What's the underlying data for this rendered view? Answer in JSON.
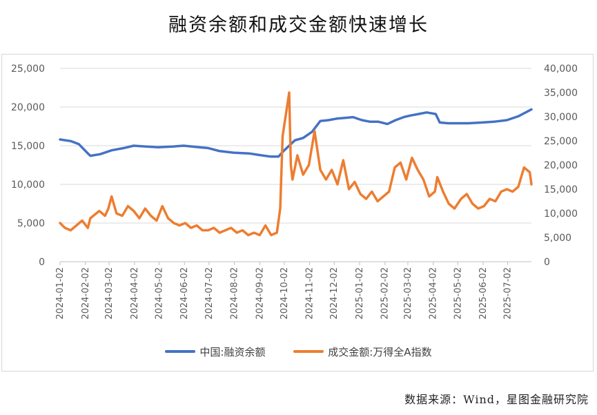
{
  "title": "融资余额和成交金额快速增长",
  "source": "数据来源：Wind，星图金融研究院",
  "chart_data": {
    "type": "line",
    "left_axis": {
      "min": 0,
      "max": 25000,
      "ticks": [
        "0",
        "5,000",
        "10,000",
        "15,000",
        "20,000",
        "25,000"
      ]
    },
    "right_axis": {
      "min": 0,
      "max": 40000,
      "ticks": [
        "0",
        "5,000",
        "10,000",
        "15,000",
        "20,000",
        "25,000",
        "30,000",
        "35,000",
        "40,000"
      ]
    },
    "x_ticks": [
      "2024-01-02",
      "2024-02-02",
      "2024-03-02",
      "2024-04-02",
      "2024-05-02",
      "2024-06-02",
      "2024-07-02",
      "2024-08-02",
      "2024-09-02",
      "2024-10-02",
      "2024-11-02",
      "2024-12-02",
      "2025-01-02",
      "2025-02-02",
      "2025-03-02",
      "2025-04-02",
      "2025-05-02",
      "2025-06-02",
      "2025-07-02"
    ],
    "x_range": [
      "2024-01-02",
      "2025-07-31"
    ],
    "series": [
      {
        "name": "中国:融资余额",
        "axis": "left",
        "color": "#4472C4",
        "points": [
          [
            "2024-01-02",
            15800
          ],
          [
            "2024-01-15",
            15600
          ],
          [
            "2024-01-25",
            15200
          ],
          [
            "2024-02-05",
            14000
          ],
          [
            "2024-02-08",
            13700
          ],
          [
            "2024-02-20",
            13900
          ],
          [
            "2024-03-05",
            14400
          ],
          [
            "2024-03-20",
            14700
          ],
          [
            "2024-04-01",
            15000
          ],
          [
            "2024-04-15",
            14900
          ],
          [
            "2024-05-01",
            14800
          ],
          [
            "2024-05-20",
            14900
          ],
          [
            "2024-06-01",
            15000
          ],
          [
            "2024-06-20",
            14800
          ],
          [
            "2024-07-01",
            14700
          ],
          [
            "2024-07-15",
            14300
          ],
          [
            "2024-08-01",
            14100
          ],
          [
            "2024-08-20",
            14000
          ],
          [
            "2024-09-01",
            13800
          ],
          [
            "2024-09-15",
            13600
          ],
          [
            "2024-09-25",
            13600
          ],
          [
            "2024-10-01",
            14300
          ],
          [
            "2024-10-08",
            15000
          ],
          [
            "2024-10-15",
            15700
          ],
          [
            "2024-10-25",
            16000
          ],
          [
            "2024-11-05",
            16800
          ],
          [
            "2024-11-15",
            18200
          ],
          [
            "2024-11-25",
            18300
          ],
          [
            "2024-12-05",
            18500
          ],
          [
            "2024-12-15",
            18600
          ],
          [
            "2024-12-25",
            18700
          ],
          [
            "2025-01-05",
            18300
          ],
          [
            "2025-01-15",
            18100
          ],
          [
            "2025-01-25",
            18100
          ],
          [
            "2025-02-05",
            17800
          ],
          [
            "2025-02-15",
            18300
          ],
          [
            "2025-02-25",
            18700
          ],
          [
            "2025-03-05",
            18900
          ],
          [
            "2025-03-15",
            19100
          ],
          [
            "2025-03-25",
            19300
          ],
          [
            "2025-04-05",
            19100
          ],
          [
            "2025-04-10",
            18000
          ],
          [
            "2025-04-20",
            17900
          ],
          [
            "2025-05-01",
            17900
          ],
          [
            "2025-05-15",
            17900
          ],
          [
            "2025-06-01",
            18000
          ],
          [
            "2025-06-15",
            18100
          ],
          [
            "2025-07-01",
            18300
          ],
          [
            "2025-07-15",
            18800
          ],
          [
            "2025-07-31",
            19700
          ]
        ]
      },
      {
        "name": "成交金额:万得全A指数",
        "axis": "right",
        "color": "#ED7D31",
        "points": [
          [
            "2024-01-02",
            8000
          ],
          [
            "2024-01-08",
            7000
          ],
          [
            "2024-01-15",
            6500
          ],
          [
            "2024-01-22",
            7500
          ],
          [
            "2024-01-29",
            8500
          ],
          [
            "2024-02-05",
            7000
          ],
          [
            "2024-02-08",
            9000
          ],
          [
            "2024-02-19",
            10500
          ],
          [
            "2024-02-26",
            9500
          ],
          [
            "2024-03-01",
            11000
          ],
          [
            "2024-03-05",
            13500
          ],
          [
            "2024-03-11",
            10000
          ],
          [
            "2024-03-18",
            9500
          ],
          [
            "2024-03-25",
            11500
          ],
          [
            "2024-04-01",
            10500
          ],
          [
            "2024-04-08",
            9000
          ],
          [
            "2024-04-15",
            11000
          ],
          [
            "2024-04-22",
            9500
          ],
          [
            "2024-04-29",
            8500
          ],
          [
            "2024-05-06",
            11500
          ],
          [
            "2024-05-13",
            9000
          ],
          [
            "2024-05-20",
            8000
          ],
          [
            "2024-05-27",
            7500
          ],
          [
            "2024-06-03",
            8000
          ],
          [
            "2024-06-10",
            7000
          ],
          [
            "2024-06-17",
            7500
          ],
          [
            "2024-06-24",
            6500
          ],
          [
            "2024-07-01",
            6500
          ],
          [
            "2024-07-08",
            7000
          ],
          [
            "2024-07-15",
            6000
          ],
          [
            "2024-07-22",
            6500
          ],
          [
            "2024-07-29",
            7000
          ],
          [
            "2024-08-05",
            6000
          ],
          [
            "2024-08-12",
            6500
          ],
          [
            "2024-08-19",
            5500
          ],
          [
            "2024-08-26",
            6000
          ],
          [
            "2024-09-02",
            5500
          ],
          [
            "2024-09-09",
            7500
          ],
          [
            "2024-09-16",
            5500
          ],
          [
            "2024-09-23",
            6000
          ],
          [
            "2024-09-27",
            11000
          ],
          [
            "2024-09-30",
            26000
          ],
          [
            "2024-10-08",
            35000
          ],
          [
            "2024-10-10",
            20000
          ],
          [
            "2024-10-12",
            17000
          ],
          [
            "2024-10-18",
            22000
          ],
          [
            "2024-10-25",
            18000
          ],
          [
            "2024-11-01",
            20000
          ],
          [
            "2024-11-08",
            27000
          ],
          [
            "2024-11-15",
            19000
          ],
          [
            "2024-11-22",
            17000
          ],
          [
            "2024-11-29",
            19000
          ],
          [
            "2024-12-06",
            16000
          ],
          [
            "2024-12-13",
            21000
          ],
          [
            "2024-12-20",
            15000
          ],
          [
            "2024-12-27",
            16500
          ],
          [
            "2025-01-03",
            14000
          ],
          [
            "2025-01-10",
            13000
          ],
          [
            "2025-01-17",
            14500
          ],
          [
            "2025-01-24",
            12500
          ],
          [
            "2025-02-07",
            14500
          ],
          [
            "2025-02-14",
            19500
          ],
          [
            "2025-02-21",
            20500
          ],
          [
            "2025-02-28",
            17000
          ],
          [
            "2025-03-07",
            21500
          ],
          [
            "2025-03-14",
            19000
          ],
          [
            "2025-03-21",
            17000
          ],
          [
            "2025-03-28",
            13500
          ],
          [
            "2025-04-04",
            14500
          ],
          [
            "2025-04-07",
            17500
          ],
          [
            "2025-04-14",
            14500
          ],
          [
            "2025-04-21",
            12000
          ],
          [
            "2025-04-28",
            11000
          ],
          [
            "2025-05-06",
            13000
          ],
          [
            "2025-05-13",
            14000
          ],
          [
            "2025-05-20",
            12000
          ],
          [
            "2025-05-27",
            11000
          ],
          [
            "2025-06-03",
            11500
          ],
          [
            "2025-06-10",
            13000
          ],
          [
            "2025-06-17",
            12500
          ],
          [
            "2025-06-24",
            14500
          ],
          [
            "2025-07-01",
            15000
          ],
          [
            "2025-07-08",
            14500
          ],
          [
            "2025-07-15",
            15500
          ],
          [
            "2025-07-22",
            19500
          ],
          [
            "2025-07-29",
            18500
          ],
          [
            "2025-07-31",
            16000
          ]
        ]
      }
    ]
  }
}
